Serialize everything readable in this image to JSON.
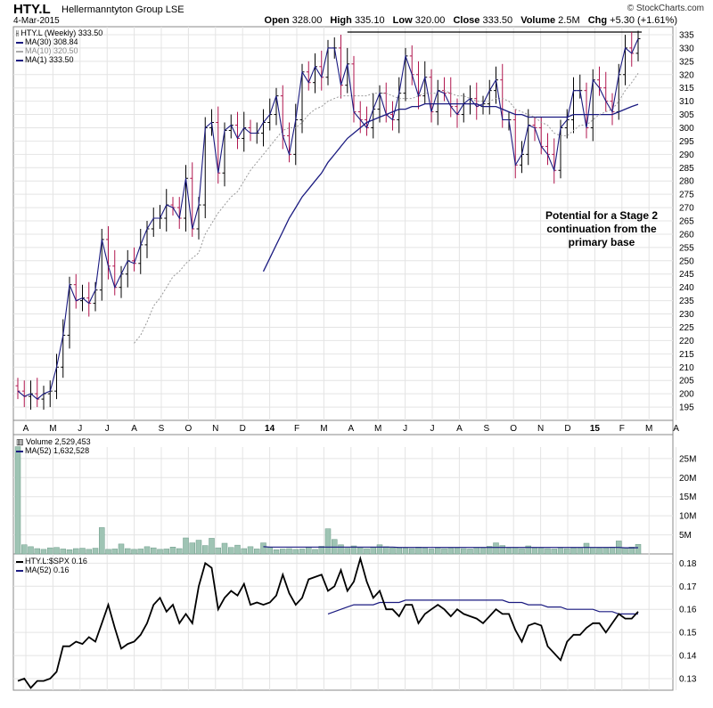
{
  "header": {
    "ticker": "HTY.L",
    "company": "Hellermanntyton Group  LSE",
    "date": "4-Mar-2015",
    "brand": "© StockCharts.com",
    "quote": [
      {
        "label": "Open",
        "value": "328.00"
      },
      {
        "label": "High",
        "value": "335.10"
      },
      {
        "label": "Low",
        "value": "320.00"
      },
      {
        "label": "Close",
        "value": "333.50"
      },
      {
        "label": "Volume",
        "value": "2.5M"
      },
      {
        "label": "Chg",
        "value": "+5.30 (+1.61%)"
      }
    ]
  },
  "annotation": "Potential for a Stage 2\ncontinuation from the\nprimary base",
  "colors": {
    "up_bar": "#000000",
    "down_bar": "#b0164e",
    "ma30": "#1a1a80",
    "ma10": "#999999",
    "ma1": "#1a1a80",
    "volume": "#9fc4b4",
    "grid": "#e4e4e4"
  },
  "chart_data": [
    {
      "type": "ohlc",
      "title": "HTY.L (Weekly) 333.50",
      "x_tick_labels": [
        "A",
        "M",
        "J",
        "J",
        "A",
        "S",
        "O",
        "N",
        "D",
        "14",
        "F",
        "M",
        "A",
        "M",
        "J",
        "J",
        "A",
        "S",
        "O",
        "N",
        "D",
        "15",
        "F",
        "M",
        "A"
      ],
      "y_ticks": [
        195,
        200,
        205,
        210,
        215,
        220,
        225,
        230,
        235,
        240,
        245,
        250,
        255,
        260,
        265,
        270,
        275,
        280,
        285,
        290,
        295,
        300,
        305,
        310,
        315,
        320,
        325,
        330,
        335
      ],
      "ylim": [
        190,
        338
      ],
      "legend": [
        {
          "name": "MA(30)",
          "value": "308.84"
        },
        {
          "name": "MA(10)",
          "value": "320.50"
        },
        {
          "name": "MA(1)",
          "value": "333.50"
        }
      ],
      "resistance_level": 336,
      "series": [
        {
          "name": "MA(1)",
          "values": [
            201,
            199,
            200,
            198,
            200,
            201,
            210,
            222,
            241,
            235,
            236,
            234,
            239,
            258,
            248,
            240,
            245,
            250,
            249,
            256,
            262,
            266,
            266,
            271,
            270,
            266,
            281,
            262,
            271,
            300,
            302,
            283,
            299,
            301,
            296,
            300,
            298,
            298,
            302,
            305,
            312,
            297,
            290,
            303,
            321,
            317,
            323,
            319,
            330,
            330,
            316,
            324,
            306,
            303,
            300,
            307,
            313,
            305,
            303,
            313,
            327,
            320,
            312,
            319,
            306,
            314,
            313,
            308,
            305,
            309,
            311,
            308,
            309,
            314,
            318,
            303,
            303,
            286,
            290,
            301,
            300,
            293,
            290,
            284,
            300,
            303,
            314,
            314,
            300,
            318,
            315,
            310,
            306,
            320,
            330,
            328,
            333.5
          ]
        },
        {
          "name": "MA(10)",
          "values": [
            null,
            null,
            null,
            null,
            null,
            null,
            null,
            null,
            null,
            null,
            null,
            null,
            null,
            null,
            null,
            null,
            null,
            null,
            219,
            222,
            227,
            233,
            236,
            240,
            244,
            246,
            249,
            251,
            253,
            260,
            264,
            268,
            271,
            274,
            276,
            280,
            284,
            287,
            290,
            293,
            296,
            299,
            300,
            300,
            302,
            305,
            307,
            308,
            310,
            311,
            312,
            312,
            312,
            312,
            312,
            313,
            313,
            313,
            312,
            311,
            311,
            311,
            312,
            313,
            313,
            313,
            314,
            313,
            312,
            312,
            311,
            310,
            310,
            310,
            311,
            311,
            310,
            307,
            306,
            305,
            304,
            302,
            301,
            298,
            297,
            297,
            299,
            301,
            301,
            303,
            305,
            306,
            307,
            310,
            314,
            317,
            320.5
          ]
        },
        {
          "name": "MA(30)",
          "values": [
            null,
            null,
            null,
            null,
            null,
            null,
            null,
            null,
            null,
            null,
            null,
            null,
            null,
            null,
            null,
            null,
            null,
            null,
            null,
            null,
            null,
            null,
            null,
            null,
            null,
            null,
            null,
            null,
            null,
            null,
            null,
            null,
            null,
            null,
            null,
            null,
            null,
            null,
            246,
            251,
            256,
            261,
            266,
            270,
            274,
            277,
            280,
            283,
            287,
            290,
            293,
            296,
            298,
            300,
            302,
            303,
            304,
            305,
            306,
            307,
            307,
            308,
            308,
            309,
            309,
            309,
            309,
            309,
            309,
            309,
            309,
            309,
            308,
            308,
            308,
            307,
            306,
            305,
            305,
            304,
            304,
            304,
            304,
            304,
            304,
            304,
            305,
            305,
            305,
            305,
            305,
            305,
            305,
            306,
            307,
            308,
            308.84
          ]
        }
      ]
    },
    {
      "type": "bar",
      "title": "Volume 2,529,453",
      "legend": [
        {
          "name": "MA(52)",
          "value": "1,632,528"
        }
      ],
      "y_ticks": [
        "5M",
        "10M",
        "15M",
        "20M",
        "25M"
      ],
      "ylim": [
        0,
        28
      ],
      "unit": "millions",
      "values": [
        28.1,
        2.4,
        1.9,
        1.4,
        1.2,
        1.6,
        1.7,
        1.3,
        1.1,
        1.4,
        1.5,
        1.2,
        1.5,
        6.9,
        1.2,
        1.3,
        2.6,
        1.4,
        1.2,
        1.3,
        1.9,
        1.6,
        1.2,
        1.3,
        1.8,
        1.4,
        4.2,
        2.9,
        3.6,
        2.2,
        4.1,
        1.6,
        2.8,
        1.7,
        2.3,
        1.4,
        1.9,
        1.3,
        2.9,
        1.8,
        1.1,
        1.3,
        1.4,
        1.2,
        1.3,
        1.8,
        1.2,
        2.0,
        6.6,
        3.8,
        2.4,
        1.5,
        2.1,
        1.6,
        1.4,
        1.7,
        2.4,
        1.9,
        1.6,
        1.6,
        1.5,
        1.4,
        1.8,
        1.5,
        1.3,
        1.6,
        1.4,
        1.5,
        1.6,
        1.4,
        1.3,
        1.7,
        1.5,
        2.0,
        2.9,
        2.2,
        1.5,
        1.7,
        1.4,
        2.1,
        1.6,
        1.5,
        1.4,
        1.3,
        1.5,
        1.4,
        1.6,
        1.5,
        2.8,
        1.7,
        1.5,
        1.6,
        1.8,
        3.4,
        1.6,
        1.8,
        2.5
      ],
      "ma52": [
        null,
        null,
        null,
        null,
        null,
        null,
        null,
        null,
        null,
        null,
        null,
        null,
        null,
        null,
        null,
        null,
        null,
        null,
        null,
        null,
        null,
        null,
        null,
        null,
        null,
        null,
        null,
        null,
        null,
        null,
        null,
        null,
        null,
        null,
        null,
        null,
        null,
        null,
        1.9,
        1.8,
        1.8,
        1.8,
        1.8,
        1.8,
        1.8,
        1.8,
        1.8,
        1.8,
        1.8,
        1.8,
        1.8,
        1.8,
        1.8,
        1.8,
        1.8,
        1.8,
        1.8,
        1.8,
        1.8,
        1.7,
        1.7,
        1.7,
        1.7,
        1.7,
        1.7,
        1.7,
        1.7,
        1.7,
        1.7,
        1.7,
        1.7,
        1.7,
        1.7,
        1.7,
        1.7,
        1.7,
        1.7,
        1.7,
        1.7,
        1.7,
        1.7,
        1.7,
        1.7,
        1.7,
        1.7,
        1.7,
        1.7,
        1.7,
        1.7,
        1.7,
        1.7,
        1.7,
        1.7,
        1.7,
        1.6,
        1.6,
        1.63
      ]
    },
    {
      "type": "line",
      "title": "HTY.L:$SPX 0.16",
      "legend": [
        {
          "name": "MA(52)",
          "value": "0.16"
        }
      ],
      "y_ticks": [
        0.13,
        0.14,
        0.15,
        0.16,
        0.17,
        0.18
      ],
      "ylim": [
        0.125,
        0.184
      ],
      "series": [
        {
          "name": "HTY.L:$SPX",
          "values": [
            0.129,
            0.13,
            0.126,
            0.129,
            0.129,
            0.13,
            0.133,
            0.144,
            0.144,
            0.146,
            0.145,
            0.148,
            0.146,
            0.154,
            0.162,
            0.152,
            0.143,
            0.145,
            0.146,
            0.149,
            0.154,
            0.162,
            0.165,
            0.159,
            0.162,
            0.154,
            0.158,
            0.154,
            0.17,
            0.18,
            0.178,
            0.16,
            0.165,
            0.168,
            0.166,
            0.171,
            0.162,
            0.163,
            0.162,
            0.163,
            0.166,
            0.175,
            0.167,
            0.162,
            0.165,
            0.173,
            0.174,
            0.175,
            0.168,
            0.17,
            0.177,
            0.168,
            0.172,
            0.182,
            0.172,
            0.165,
            0.168,
            0.16,
            0.16,
            0.157,
            0.162,
            0.162,
            0.154,
            0.158,
            0.16,
            0.162,
            0.16,
            0.157,
            0.16,
            0.158,
            0.157,
            0.156,
            0.154,
            0.157,
            0.16,
            0.158,
            0.158,
            0.151,
            0.146,
            0.153,
            0.154,
            0.153,
            0.144,
            0.141,
            0.138,
            0.146,
            0.149,
            0.149,
            0.152,
            0.154,
            0.154,
            0.15,
            0.154,
            0.158,
            0.156,
            0.156,
            0.159
          ]
        },
        {
          "name": "MA(52)",
          "values": [
            null,
            null,
            null,
            null,
            null,
            null,
            null,
            null,
            null,
            null,
            null,
            null,
            null,
            null,
            null,
            null,
            null,
            null,
            null,
            null,
            null,
            null,
            null,
            null,
            null,
            null,
            null,
            null,
            null,
            null,
            null,
            null,
            null,
            null,
            null,
            null,
            null,
            null,
            null,
            null,
            null,
            null,
            null,
            null,
            null,
            null,
            null,
            null,
            0.158,
            0.159,
            0.16,
            0.161,
            0.162,
            0.162,
            0.162,
            0.162,
            0.163,
            0.163,
            0.163,
            0.163,
            0.164,
            0.164,
            0.164,
            0.164,
            0.164,
            0.164,
            0.164,
            0.164,
            0.164,
            0.164,
            0.164,
            0.164,
            0.164,
            0.164,
            0.164,
            0.164,
            0.163,
            0.163,
            0.163,
            0.162,
            0.162,
            0.162,
            0.161,
            0.161,
            0.161,
            0.16,
            0.16,
            0.16,
            0.16,
            0.16,
            0.159,
            0.159,
            0.159,
            0.158,
            0.158,
            0.158,
            0.158
          ]
        }
      ]
    }
  ]
}
